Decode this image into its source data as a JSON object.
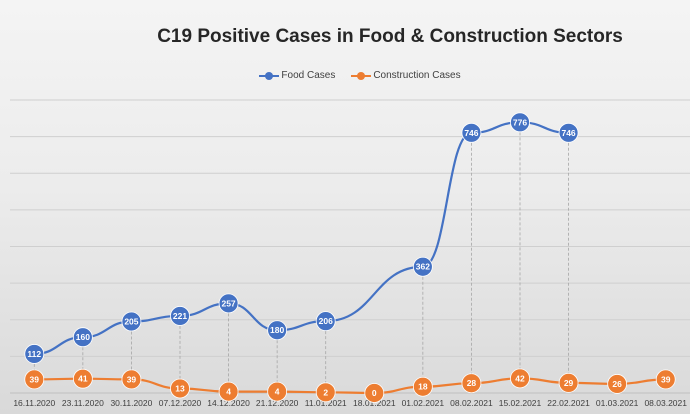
{
  "chart_data": {
    "type": "line",
    "title": "C19 Positive Cases in Food & Construction Sectors",
    "xlabel": "",
    "ylabel": "",
    "ylim": [
      0,
      840
    ],
    "grid": true,
    "legend_position": "top-center",
    "categories": [
      "16.11.2020",
      "23.11.2020",
      "30.11.2020",
      "07.12.2020",
      "14.12.2020",
      "21.12.2020",
      "11.01.2021",
      "18.01.2021",
      "01.02.2021",
      "08.02.2021",
      "15.02.2021",
      "22.02.2021",
      "01.03.2021",
      "08.03.2021"
    ],
    "series": [
      {
        "name": "Food Cases",
        "color": "#4472c4",
        "values": [
          112,
          160,
          205,
          221,
          257,
          180,
          206,
          null,
          362,
          746,
          776,
          746,
          null,
          null
        ],
        "labels": [
          "112",
          "160",
          "205",
          "221",
          "257",
          "180",
          "206",
          null,
          "362",
          "746",
          "776",
          "746",
          null,
          null
        ]
      },
      {
        "name": "Construction Cases",
        "color": "#ed7d31",
        "values": [
          39,
          41,
          39,
          13,
          4,
          4,
          2,
          0,
          18,
          28,
          42,
          29,
          26,
          39
        ],
        "labels": [
          "39",
          "41",
          "39",
          "13",
          "4",
          "4",
          "2",
          "0",
          "18",
          "28",
          "42",
          "29",
          "26",
          "39"
        ]
      }
    ]
  }
}
